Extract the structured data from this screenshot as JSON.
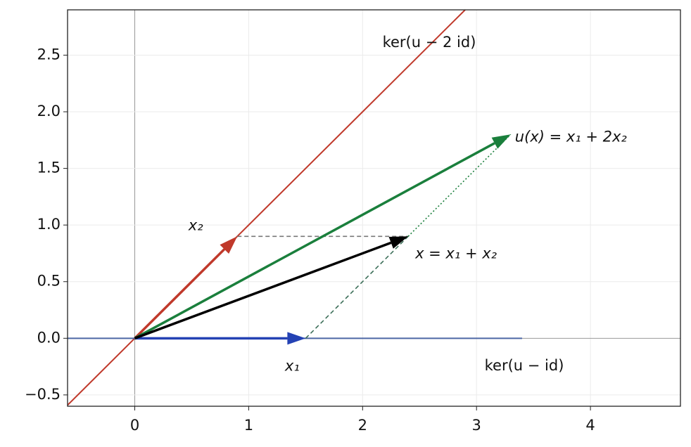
{
  "chart_data": {
    "type": "vector",
    "xlim": [
      -0.59,
      4.79
    ],
    "ylim": [
      -0.6,
      2.9
    ],
    "xticks": [
      0,
      1,
      2,
      3,
      4
    ],
    "yticks": [
      {
        "value": -0.5,
        "label": "−0.5"
      },
      {
        "value": 0,
        "label": "0.0"
      },
      0.5,
      {
        "value": 1,
        "label": "1.0"
      },
      1.5,
      {
        "value": 2,
        "label": "2.0"
      },
      2.5
    ],
    "grid": true,
    "lines": [
      {
        "name": "ker(u − 2 id)",
        "color": "#c0392b",
        "style": "solid",
        "x": [
          -0.59,
          2.9
        ],
        "y": [
          -0.59,
          2.9
        ]
      },
      {
        "name": "ker(u − id)",
        "color": "#4c66a4",
        "style": "solid",
        "x": [
          -0.59,
          3.4
        ],
        "y": [
          0,
          0
        ]
      }
    ],
    "guides": [
      {
        "color": "#777777",
        "style": "dashed",
        "x": [
          0.9,
          2.4
        ],
        "y": [
          0.9,
          0.9
        ]
      },
      {
        "color": "#3b6e58",
        "style": "dashed",
        "x": [
          1.5,
          2.4
        ],
        "y": [
          0,
          0.9
        ]
      },
      {
        "color": "#1a7f3c",
        "style": "dotted",
        "x": [
          2.4,
          3.3
        ],
        "y": [
          0.9,
          1.8
        ]
      }
    ],
    "vectors": [
      {
        "name": "x₁",
        "color": "#2442b4",
        "x": 1.5,
        "y": 0
      },
      {
        "name": "x₂",
        "color": "#c0392b",
        "x": 0.9,
        "y": 0.9
      },
      {
        "name": "u(x) = x₁ + 2x₂",
        "color": "#1a7f3c",
        "x": 3.3,
        "y": 1.8
      },
      {
        "name": "x = x₁ + x₂",
        "color": "#000000",
        "x": 2.4,
        "y": 0.9
      }
    ]
  }
}
